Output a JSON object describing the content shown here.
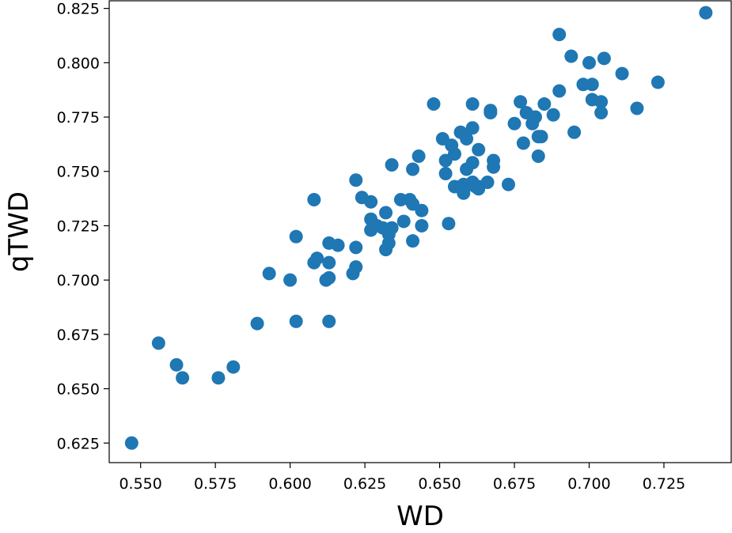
{
  "chart_data": {
    "type": "scatter",
    "title": "",
    "xlabel": "WD",
    "ylabel": "qTWD",
    "xlim": [
      0.5395,
      0.7475
    ],
    "ylim": [
      0.616,
      0.8285
    ],
    "xticks": [
      0.55,
      0.575,
      0.6,
      0.625,
      0.65,
      0.675,
      0.7,
      0.725
    ],
    "xtick_labels": [
      "0.550",
      "0.575",
      "0.600",
      "0.625",
      "0.650",
      "0.675",
      "0.700",
      "0.725"
    ],
    "yticks": [
      0.625,
      0.65,
      0.675,
      0.7,
      0.725,
      0.75,
      0.775,
      0.8,
      0.825
    ],
    "ytick_labels": [
      "0.625",
      "0.650",
      "0.675",
      "0.700",
      "0.725",
      "0.750",
      "0.775",
      "0.800",
      "0.825"
    ],
    "grid": false,
    "marker_color": "#1f77b4",
    "points": [
      [
        0.547,
        0.625
      ],
      [
        0.556,
        0.671
      ],
      [
        0.562,
        0.661
      ],
      [
        0.564,
        0.655
      ],
      [
        0.576,
        0.655
      ],
      [
        0.581,
        0.66
      ],
      [
        0.589,
        0.68
      ],
      [
        0.593,
        0.703
      ],
      [
        0.6,
        0.7
      ],
      [
        0.602,
        0.681
      ],
      [
        0.602,
        0.72
      ],
      [
        0.608,
        0.708
      ],
      [
        0.609,
        0.71
      ],
      [
        0.608,
        0.737
      ],
      [
        0.612,
        0.7
      ],
      [
        0.613,
        0.701
      ],
      [
        0.613,
        0.708
      ],
      [
        0.613,
        0.717
      ],
      [
        0.613,
        0.681
      ],
      [
        0.616,
        0.716
      ],
      [
        0.621,
        0.703
      ],
      [
        0.622,
        0.706
      ],
      [
        0.622,
        0.715
      ],
      [
        0.622,
        0.746
      ],
      [
        0.624,
        0.738
      ],
      [
        0.627,
        0.736
      ],
      [
        0.627,
        0.728
      ],
      [
        0.627,
        0.723
      ],
      [
        0.629,
        0.725
      ],
      [
        0.631,
        0.724
      ],
      [
        0.632,
        0.731
      ],
      [
        0.632,
        0.714
      ],
      [
        0.633,
        0.717
      ],
      [
        0.633,
        0.721
      ],
      [
        0.634,
        0.724
      ],
      [
        0.634,
        0.753
      ],
      [
        0.637,
        0.737
      ],
      [
        0.638,
        0.727
      ],
      [
        0.64,
        0.737
      ],
      [
        0.641,
        0.735
      ],
      [
        0.641,
        0.718
      ],
      [
        0.641,
        0.751
      ],
      [
        0.643,
        0.757
      ],
      [
        0.644,
        0.732
      ],
      [
        0.644,
        0.725
      ],
      [
        0.648,
        0.781
      ],
      [
        0.651,
        0.765
      ],
      [
        0.652,
        0.755
      ],
      [
        0.652,
        0.749
      ],
      [
        0.653,
        0.726
      ],
      [
        0.654,
        0.762
      ],
      [
        0.655,
        0.743
      ],
      [
        0.655,
        0.758
      ],
      [
        0.657,
        0.768
      ],
      [
        0.657,
        0.743
      ],
      [
        0.658,
        0.744
      ],
      [
        0.658,
        0.74
      ],
      [
        0.659,
        0.751
      ],
      [
        0.659,
        0.765
      ],
      [
        0.66,
        0.744
      ],
      [
        0.661,
        0.781
      ],
      [
        0.661,
        0.77
      ],
      [
        0.661,
        0.754
      ],
      [
        0.661,
        0.745
      ],
      [
        0.662,
        0.743
      ],
      [
        0.663,
        0.743
      ],
      [
        0.663,
        0.76
      ],
      [
        0.663,
        0.742
      ],
      [
        0.666,
        0.745
      ],
      [
        0.667,
        0.777
      ],
      [
        0.667,
        0.778
      ],
      [
        0.668,
        0.752
      ],
      [
        0.668,
        0.755
      ],
      [
        0.673,
        0.744
      ],
      [
        0.675,
        0.772
      ],
      [
        0.677,
        0.782
      ],
      [
        0.678,
        0.763
      ],
      [
        0.679,
        0.777
      ],
      [
        0.681,
        0.772
      ],
      [
        0.682,
        0.775
      ],
      [
        0.683,
        0.766
      ],
      [
        0.683,
        0.757
      ],
      [
        0.684,
        0.766
      ],
      [
        0.685,
        0.781
      ],
      [
        0.688,
        0.776
      ],
      [
        0.69,
        0.787
      ],
      [
        0.69,
        0.813
      ],
      [
        0.694,
        0.803
      ],
      [
        0.695,
        0.768
      ],
      [
        0.698,
        0.79
      ],
      [
        0.7,
        0.8
      ],
      [
        0.701,
        0.79
      ],
      [
        0.701,
        0.783
      ],
      [
        0.704,
        0.782
      ],
      [
        0.704,
        0.777
      ],
      [
        0.705,
        0.802
      ],
      [
        0.711,
        0.795
      ],
      [
        0.716,
        0.779
      ],
      [
        0.723,
        0.791
      ],
      [
        0.739,
        0.823
      ]
    ]
  }
}
